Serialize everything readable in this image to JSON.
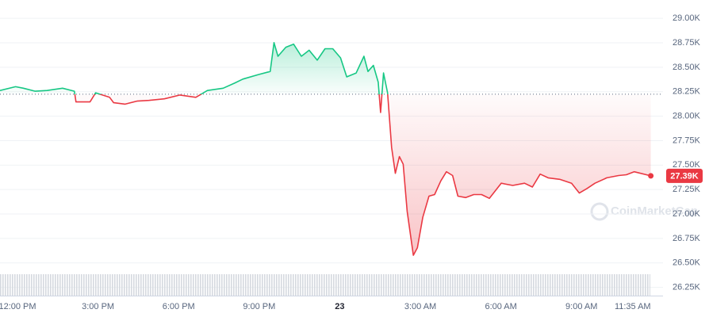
{
  "chart_data": {
    "type": "line",
    "watermark": "CoinMarketCap",
    "baseline": 28225,
    "last_value_label": "27.39K",
    "up_color": "#16c784",
    "down_color": "#ea3943",
    "grid": true,
    "xlim": [
      -0.65,
      24.3
    ],
    "ylim": [
      26130,
      29060
    ],
    "xticks": [
      {
        "value": 0,
        "label": "12:00 PM"
      },
      {
        "value": 3,
        "label": "3:00 PM"
      },
      {
        "value": 6,
        "label": "6:00 PM"
      },
      {
        "value": 9,
        "label": "9:00 PM"
      },
      {
        "value": 12,
        "label": "23"
      },
      {
        "value": 15,
        "label": "3:00 AM"
      },
      {
        "value": 18,
        "label": "6:00 AM"
      },
      {
        "value": 21,
        "label": "9:00 AM"
      },
      {
        "value": 23.58,
        "label": "11:35 AM"
      }
    ],
    "yticks": [
      {
        "value": 29000,
        "label": "29.00K"
      },
      {
        "value": 28750,
        "label": "28.75K"
      },
      {
        "value": 28500,
        "label": "28.50K"
      },
      {
        "value": 28250,
        "label": "28.25K"
      },
      {
        "value": 28000,
        "label": "28.00K"
      },
      {
        "value": 27750,
        "label": "27.75K"
      },
      {
        "value": 27500,
        "label": "27.50K"
      },
      {
        "value": 27250,
        "label": "27.25K"
      },
      {
        "value": 27000,
        "label": "27.00K"
      },
      {
        "value": 26750,
        "label": "26.75K"
      },
      {
        "value": 26500,
        "label": "26.50K"
      },
      {
        "value": 26250,
        "label": "26.25K"
      }
    ],
    "x": [
      -0.65,
      -0.07,
      0.22,
      0.66,
      1.1,
      1.68,
      2.12,
      2.18,
      2.7,
      2.91,
      3.43,
      3.58,
      4.01,
      4.45,
      4.89,
      5.47,
      6.05,
      6.64,
      7.07,
      7.66,
      8.1,
      8.39,
      8.97,
      9.41,
      9.55,
      9.7,
      9.99,
      10.28,
      10.57,
      10.86,
      11.16,
      11.45,
      11.74,
      12.03,
      12.26,
      12.61,
      12.9,
      13.05,
      13.25,
      13.43,
      13.52,
      13.63,
      13.78,
      13.93,
      14.07,
      14.22,
      14.36,
      14.51,
      14.74,
      14.89,
      15.09,
      15.32,
      15.53,
      15.76,
      15.97,
      16.2,
      16.4,
      16.69,
      16.99,
      17.28,
      17.57,
      18.01,
      18.44,
      18.88,
      19.17,
      19.46,
      19.76,
      20.19,
      20.63,
      20.92,
      21.21,
      21.5,
      21.94,
      22.38,
      22.67,
      22.96,
      23.58
    ],
    "values": [
      28262,
      28301,
      28286,
      28255,
      28262,
      28286,
      28255,
      28146,
      28146,
      28239,
      28193,
      28138,
      28123,
      28154,
      28161,
      28177,
      28216,
      28193,
      28262,
      28286,
      28340,
      28379,
      28425,
      28457,
      28752,
      28612,
      28705,
      28736,
      28612,
      28674,
      28573,
      28689,
      28689,
      28596,
      28402,
      28441,
      28612,
      28457,
      28519,
      28348,
      28037,
      28441,
      28239,
      27680,
      27416,
      27587,
      27509,
      27028,
      26578,
      26655,
      26966,
      27183,
      27199,
      27338,
      27432,
      27393,
      27183,
      27168,
      27199,
      27199,
      27160,
      27315,
      27292,
      27315,
      27276,
      27408,
      27370,
      27354,
      27315,
      27214,
      27261,
      27315,
      27370,
      27393,
      27401,
      27432,
      27390
    ]
  }
}
